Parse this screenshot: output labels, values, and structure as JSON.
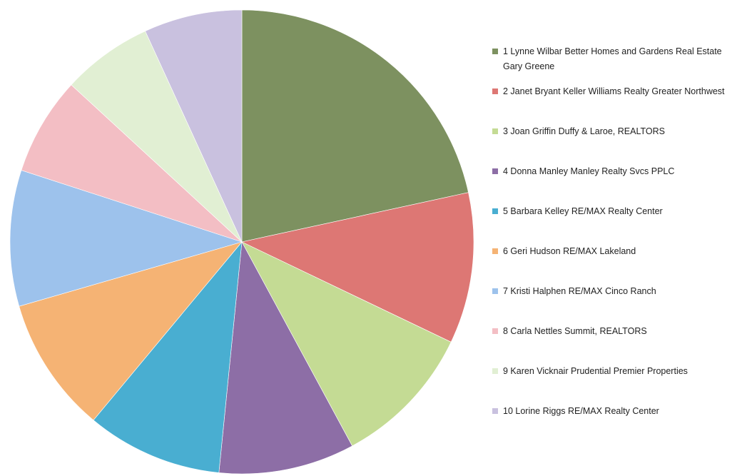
{
  "chart_data": {
    "type": "pie",
    "title": "",
    "legend_position": "right",
    "slices": [
      {
        "label": "1 Lynne Wilbar Better Homes and Gardens Real Estate Gary Greene",
        "value": 20.5,
        "color": "#7d9160"
      },
      {
        "label": "2 Janet Bryant Keller Williams Realty Greater Northwest",
        "value": 10.0,
        "color": "#dd7774"
      },
      {
        "label": "3 Joan Griffin Duffy & Laroe, REALTORS",
        "value": 9.5,
        "color": "#c4db94"
      },
      {
        "label": "4 Donna Manley Manley Realty Svcs PPLC",
        "value": 9.0,
        "color": "#8d6ea6"
      },
      {
        "label": "5 Barbara Kelley RE/MAX Realty Center",
        "value": 9.0,
        "color": "#49aed1"
      },
      {
        "label": "6 Geri Hudson RE/MAX Lakeland",
        "value": 9.0,
        "color": "#f5b374"
      },
      {
        "label": "7 Kristi Halphen RE/MAX Cinco Ranch",
        "value": 9.0,
        "color": "#9dc2ec"
      },
      {
        "label": "8 Carla Nettles Summit, REALTORS",
        "value": 6.5,
        "color": "#f3bec4"
      },
      {
        "label": "9 Karen Vicknair Prudential Premier Properties",
        "value": 6.0,
        "color": "#e1efd3"
      },
      {
        "label": "10 Lorine Riggs RE/MAX Realty Center",
        "value": 6.5,
        "color": "#c9c1df"
      }
    ]
  }
}
